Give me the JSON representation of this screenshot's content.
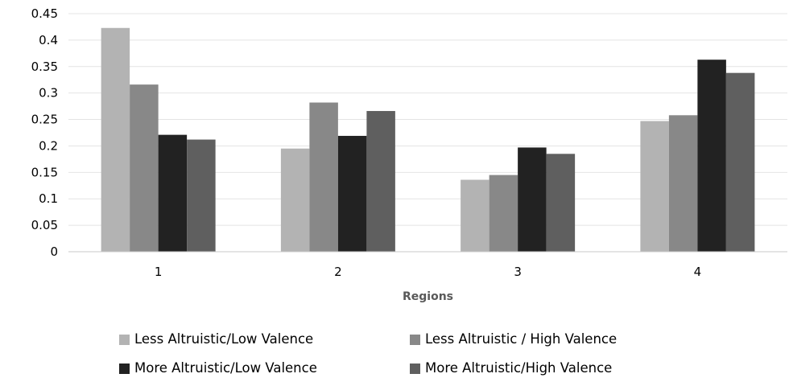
{
  "chart_data": {
    "type": "bar",
    "title": "",
    "xlabel": "Regions",
    "ylabel": "",
    "categories": [
      "1",
      "2",
      "3",
      "4"
    ],
    "ylim": [
      0,
      0.45
    ],
    "y_ticks": [
      "0",
      "0.05",
      "0.1",
      "0.15",
      "0.2",
      "0.25",
      "0.3",
      "0.35",
      "0.4",
      "0.45"
    ],
    "grid": true,
    "legend_position": "bottom",
    "series": [
      {
        "name": "Less Altruistic/Low Valence",
        "color": "#b3b3b3",
        "values": [
          0.423,
          0.195,
          0.136,
          0.247
        ]
      },
      {
        "name": "Less Altruistic / High Valence",
        "color": "#888888",
        "values": [
          0.316,
          0.282,
          0.145,
          0.258
        ]
      },
      {
        "name": "More Altruistic/Low Valence",
        "color": "#222222",
        "values": [
          0.221,
          0.219,
          0.197,
          0.363
        ]
      },
      {
        "name": "More Altruistic/High Valence",
        "color": "#5f5f5f",
        "values": [
          0.212,
          0.266,
          0.185,
          0.338
        ]
      }
    ]
  }
}
